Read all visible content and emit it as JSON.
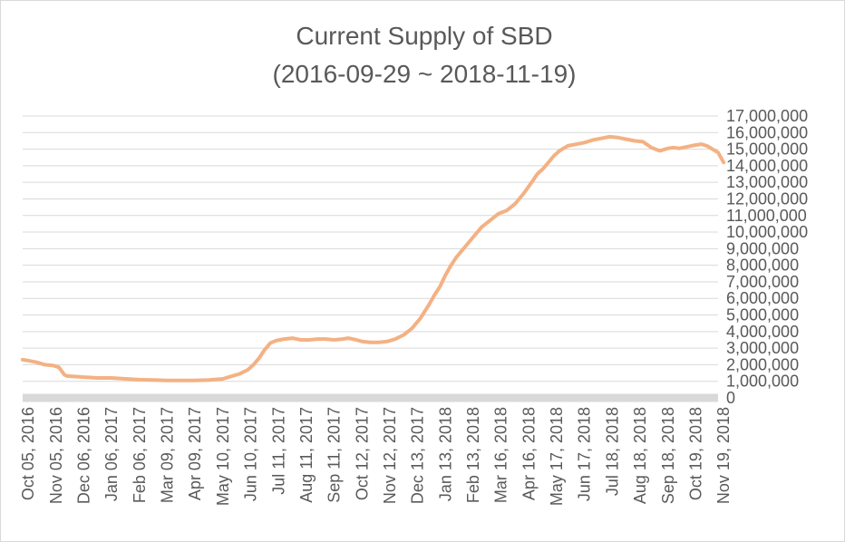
{
  "chart_data": {
    "type": "line",
    "title": "Current Supply of SBD",
    "subtitle": "(2016-09-29 ~ 2018-11-19)",
    "xlabel": "",
    "ylabel": "",
    "ylim": [
      0,
      17000000
    ],
    "y_ticks": [
      {
        "value": 0,
        "label": "0"
      },
      {
        "value": 1000000,
        "label": "1,000,000"
      },
      {
        "value": 2000000,
        "label": "2,000,000"
      },
      {
        "value": 3000000,
        "label": "3,000,000"
      },
      {
        "value": 4000000,
        "label": "4,000,000"
      },
      {
        "value": 5000000,
        "label": "5,000,000"
      },
      {
        "value": 6000000,
        "label": "6,000,000"
      },
      {
        "value": 7000000,
        "label": "7,000,000"
      },
      {
        "value": 8000000,
        "label": "8,000,000"
      },
      {
        "value": 9000000,
        "label": "9,000,000"
      },
      {
        "value": 10000000,
        "label": "10,000,000"
      },
      {
        "value": 11000000,
        "label": "11,000,000"
      },
      {
        "value": 12000000,
        "label": "12,000,000"
      },
      {
        "value": 13000000,
        "label": "13,000,000"
      },
      {
        "value": 14000000,
        "label": "14,000,000"
      },
      {
        "value": 15000000,
        "label": "15,000,000"
      },
      {
        "value": 16000000,
        "label": "16,000,000"
      },
      {
        "value": 17000000,
        "label": "17,000,000"
      }
    ],
    "x_ticks": [
      "Oct 05, 2016",
      "Nov 05, 2016",
      "Dec 06, 2016",
      "Jan 06, 2017",
      "Feb 06, 2017",
      "Mar 09, 2017",
      "Apr 09, 2017",
      "May 10, 2017",
      "Jun 10, 2017",
      "Jul 11, 2017",
      "Aug 11, 2017",
      "Sep 11, 2017",
      "Oct 12, 2017",
      "Nov 12, 2017",
      "Dec 13, 2017",
      "Jan 13, 2018",
      "Feb 13, 2018",
      "Mar 16, 2018",
      "Apr 16, 2018",
      "May 17, 2018",
      "Jun 17, 2018",
      "Jul 18, 2018",
      "Aug 18, 2018",
      "Sep 18, 2018",
      "Oct 19, 2018",
      "Nov 19, 2018"
    ],
    "x_range": [
      -0.2,
      25
    ],
    "grid": true,
    "legend": "none",
    "series": [
      {
        "name": "Current Supply of SBD",
        "color": "#f4b183",
        "x": [
          -0.2,
          0,
          0.3,
          0.6,
          0.9,
          1.1,
          1.3,
          1.4,
          1.6,
          2,
          2.5,
          3,
          3.5,
          4,
          4.5,
          5,
          5.5,
          6,
          6.5,
          7,
          7.3,
          7.6,
          7.9,
          8.1,
          8.3,
          8.5,
          8.7,
          8.9,
          9.2,
          9.5,
          9.8,
          10.1,
          10.4,
          10.7,
          11,
          11.3,
          11.5,
          11.8,
          12,
          12.3,
          12.6,
          12.9,
          13.2,
          13.5,
          13.8,
          14.1,
          14.4,
          14.6,
          14.8,
          15,
          15.2,
          15.4,
          15.5,
          15.7,
          16,
          16.3,
          16.6,
          16.9,
          17.2,
          17.5,
          17.8,
          18.1,
          18.3,
          18.5,
          18.7,
          18.9,
          19.1,
          19.4,
          19.7,
          20,
          20.3,
          20.6,
          20.9,
          21.2,
          21.5,
          21.8,
          22.1,
          22.4,
          22.7,
          23,
          23.2,
          23.4,
          23.7,
          24,
          24.2,
          24.4,
          24.6,
          24.8,
          25
        ],
        "values": [
          2300000,
          2250000,
          2150000,
          2000000,
          1950000,
          1850000,
          1400000,
          1320000,
          1300000,
          1250000,
          1200000,
          1200000,
          1150000,
          1100000,
          1080000,
          1050000,
          1050000,
          1050000,
          1080000,
          1150000,
          1300000,
          1450000,
          1700000,
          2000000,
          2400000,
          2900000,
          3300000,
          3450000,
          3550000,
          3600000,
          3500000,
          3500000,
          3550000,
          3550000,
          3500000,
          3550000,
          3600000,
          3500000,
          3400000,
          3350000,
          3350000,
          3400000,
          3550000,
          3800000,
          4200000,
          4800000,
          5600000,
          6200000,
          6700000,
          7400000,
          8000000,
          8500000,
          8700000,
          9100000,
          9700000,
          10300000,
          10700000,
          11100000,
          11300000,
          11700000,
          12300000,
          13000000,
          13500000,
          13800000,
          14200000,
          14600000,
          14900000,
          15200000,
          15300000,
          15400000,
          15550000,
          15650000,
          15750000,
          15700000,
          15600000,
          15500000,
          15450000,
          15100000,
          14900000,
          15050000,
          15100000,
          15050000,
          15150000,
          15250000,
          15300000,
          15200000,
          15000000,
          14800000,
          14200000
        ]
      }
    ]
  }
}
